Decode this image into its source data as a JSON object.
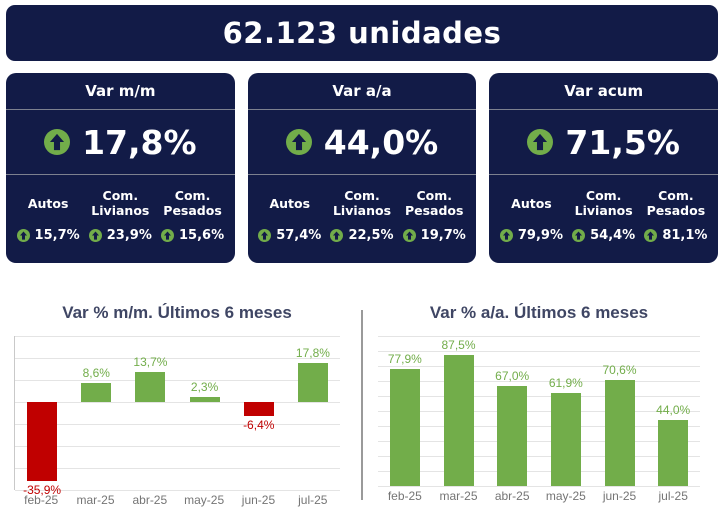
{
  "banner": {
    "total_units": "62.123 unidades"
  },
  "cards": [
    {
      "title": "Var m/m",
      "value": "17,8%",
      "trend": "up",
      "breakdown": [
        {
          "label": "Autos",
          "value": "15,7%",
          "trend": "up"
        },
        {
          "label": "Com. Livianos",
          "value": "23,9%",
          "trend": "up"
        },
        {
          "label": "Com. Pesados",
          "value": "15,6%",
          "trend": "up"
        }
      ]
    },
    {
      "title": "Var a/a",
      "value": "44,0%",
      "trend": "up",
      "breakdown": [
        {
          "label": "Autos",
          "value": "57,4%",
          "trend": "up"
        },
        {
          "label": "Com. Livianos",
          "value": "22,5%",
          "trend": "up"
        },
        {
          "label": "Com. Pesados",
          "value": "19,7%",
          "trend": "up"
        }
      ]
    },
    {
      "title": "Var acum",
      "value": "71,5%",
      "trend": "up",
      "breakdown": [
        {
          "label": "Autos",
          "value": "79,9%",
          "trend": "up"
        },
        {
          "label": "Com. Livianos",
          "value": "54,4%",
          "trend": "up"
        },
        {
          "label": "Com. Pesados",
          "value": "81,1%",
          "trend": "up"
        }
      ]
    }
  ],
  "colors": {
    "navy": "#121b47",
    "green": "#72ad4a",
    "red": "#c00000",
    "chart_title": "#3f4664",
    "axis_label": "#757575",
    "gridline": "#e4e4e4"
  },
  "chart_data": [
    {
      "type": "bar",
      "title": "Var % m/m. Últimos 6 meses",
      "categories": [
        "feb-25",
        "mar-25",
        "abr-25",
        "may-25",
        "jun-25",
        "jul-25"
      ],
      "values": [
        -35.9,
        8.6,
        13.7,
        2.3,
        -6.4,
        17.8
      ],
      "value_labels": [
        "-35,9%",
        "8,6%",
        "13,7%",
        "2,3%",
        "-6,4%",
        "17,8%"
      ],
      "ylabel": "Var % m/m",
      "ylim": [
        -40,
        30
      ],
      "grid_step": 10,
      "grid": true,
      "legend": false,
      "positive_color": "#72ad4a",
      "negative_color": "#c00000"
    },
    {
      "type": "bar",
      "title": "Var % a/a. Últimos 6 meses",
      "categories": [
        "feb-25",
        "mar-25",
        "abr-25",
        "may-25",
        "jun-25",
        "jul-25"
      ],
      "values": [
        77.9,
        87.5,
        67.0,
        61.9,
        70.6,
        44.0
      ],
      "value_labels": [
        "77,9%",
        "87,5%",
        "67,0%",
        "61,9%",
        "70,6%",
        "44,0%"
      ],
      "ylabel": "Var % a/a",
      "ylim": [
        0,
        100
      ],
      "grid_step": 10,
      "grid": true,
      "legend": false,
      "positive_color": "#72ad4a",
      "negative_color": "#c00000"
    }
  ]
}
